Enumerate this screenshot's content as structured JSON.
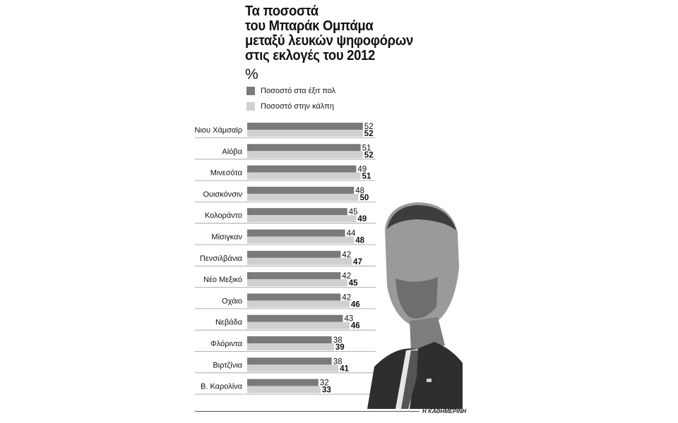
{
  "title_lines": [
    "Τα ποσοστά",
    "του Μπαράκ Ομπάμα",
    "μεταξύ λευκών ψηφοφόρων",
    "στις εκλογές του 2012"
  ],
  "unit": "%",
  "legend": [
    {
      "label": "Ποσοστό στα έξιτ πολ",
      "color": "#7a7a7a"
    },
    {
      "label": "Ποσοστό στην κάλπη",
      "color": "#d0d0d0"
    }
  ],
  "source": "Η ΚΑΘΗΜΕΡΙΝΗ",
  "chart_data": {
    "type": "bar",
    "orientation": "horizontal",
    "categories": [
      "Νιου Χάμσαϊρ",
      "Αϊόβα",
      "Μινεσότα",
      "Ουισκόνσιν",
      "Κολοράντο",
      "Μίσιγκαν",
      "Πενσιλβάνια",
      "Νέο Μεξικό",
      "Οχάιο",
      "Νεβάδα",
      "Φλόριντα",
      "Βιρτζίνια",
      "Β. Καρολίνα"
    ],
    "series": [
      {
        "name": "Ποσοστό στα έξιτ πολ",
        "color": "#7a7a7a",
        "values": [
          52,
          51,
          49,
          48,
          45,
          44,
          42,
          42,
          42,
          43,
          38,
          38,
          32
        ]
      },
      {
        "name": "Ποσοστό στην κάλπη",
        "color": "#d0d0d0",
        "values": [
          52,
          52,
          51,
          50,
          49,
          48,
          47,
          45,
          46,
          46,
          39,
          41,
          33
        ]
      }
    ],
    "xlim": [
      0,
      52
    ],
    "grid": false
  }
}
